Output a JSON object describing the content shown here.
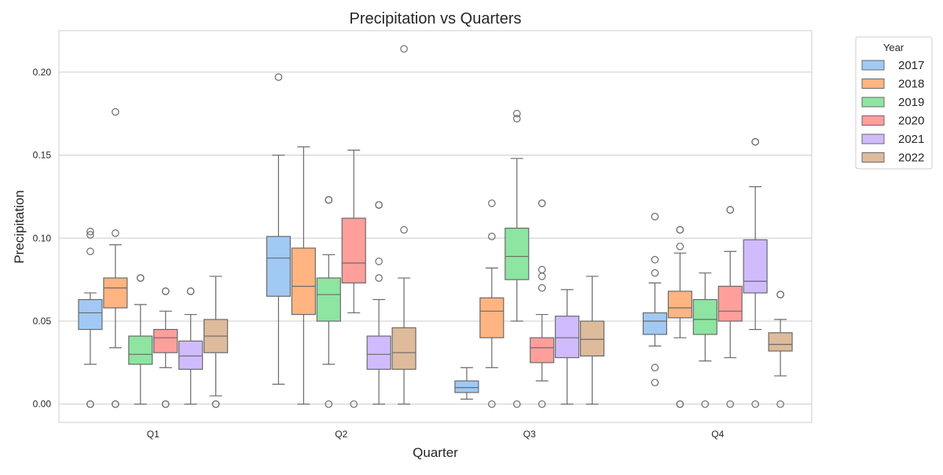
{
  "chart_data": {
    "type": "box",
    "title": "Precipitation vs Quarters",
    "xlabel": "Quarter",
    "ylabel": "Precipitation",
    "ylim": [
      -0.011,
      0.225
    ],
    "yticks": [
      "0.00",
      "0.05",
      "0.10",
      "0.15",
      "0.20"
    ],
    "ytick_values": [
      0.0,
      0.05,
      0.1,
      0.15,
      0.2
    ],
    "grid": true,
    "categories": [
      "Q1",
      "Q2",
      "Q3",
      "Q4"
    ],
    "legend": {
      "title": "Year",
      "position": "outside-right"
    },
    "series": [
      {
        "name": "2017",
        "color": "#a1c9f4",
        "boxes": [
          {
            "whislo": 0.024,
            "q1": 0.045,
            "med": 0.055,
            "q3": 0.063,
            "whishi": 0.067,
            "fliers": [
              0.104,
              0.102,
              0.092,
              0.0,
              0.0
            ]
          },
          {
            "whislo": 0.012,
            "q1": 0.065,
            "med": 0.088,
            "q3": 0.101,
            "whishi": 0.15,
            "fliers": [
              0.197
            ]
          },
          {
            "whislo": 0.003,
            "q1": 0.007,
            "med": 0.01,
            "q3": 0.014,
            "whishi": 0.022,
            "fliers": []
          },
          {
            "whislo": 0.035,
            "q1": 0.042,
            "med": 0.05,
            "q3": 0.055,
            "whishi": 0.073,
            "fliers": [
              0.113,
              0.087,
              0.079,
              0.022,
              0.013
            ]
          }
        ]
      },
      {
        "name": "2018",
        "color": "#ffb482",
        "boxes": [
          {
            "whislo": 0.034,
            "q1": 0.058,
            "med": 0.07,
            "q3": 0.076,
            "whishi": 0.096,
            "fliers": [
              0.176,
              0.103,
              0.0,
              0.0
            ]
          },
          {
            "whislo": 0.0,
            "q1": 0.054,
            "med": 0.071,
            "q3": 0.094,
            "whishi": 0.155,
            "fliers": []
          },
          {
            "whislo": 0.022,
            "q1": 0.04,
            "med": 0.056,
            "q3": 0.064,
            "whishi": 0.082,
            "fliers": [
              0.121,
              0.101,
              0.0
            ]
          },
          {
            "whislo": 0.04,
            "q1": 0.052,
            "med": 0.058,
            "q3": 0.068,
            "whishi": 0.091,
            "fliers": [
              0.105,
              0.105,
              0.095,
              0.0,
              0.0
            ]
          }
        ]
      },
      {
        "name": "2019",
        "color": "#8de5a1",
        "boxes": [
          {
            "whislo": 0.0,
            "q1": 0.024,
            "med": 0.03,
            "q3": 0.041,
            "whishi": 0.06,
            "fliers": [
              0.076,
              0.076
            ]
          },
          {
            "whislo": 0.024,
            "q1": 0.05,
            "med": 0.066,
            "q3": 0.076,
            "whishi": 0.09,
            "fliers": [
              0.123,
              0.123,
              0.0
            ]
          },
          {
            "whislo": 0.05,
            "q1": 0.075,
            "med": 0.089,
            "q3": 0.106,
            "whishi": 0.148,
            "fliers": [
              0.175,
              0.172,
              0.0
            ]
          },
          {
            "whislo": 0.026,
            "q1": 0.042,
            "med": 0.051,
            "q3": 0.063,
            "whishi": 0.079,
            "fliers": [
              0.0
            ]
          }
        ]
      },
      {
        "name": "2020",
        "color": "#ff9f9b",
        "boxes": [
          {
            "whislo": 0.022,
            "q1": 0.031,
            "med": 0.04,
            "q3": 0.045,
            "whishi": 0.056,
            "fliers": [
              0.068,
              0.068,
              0.0,
              0.0
            ]
          },
          {
            "whislo": 0.055,
            "q1": 0.073,
            "med": 0.085,
            "q3": 0.112,
            "whishi": 0.153,
            "fliers": [
              0.0
            ]
          },
          {
            "whislo": 0.014,
            "q1": 0.025,
            "med": 0.034,
            "q3": 0.04,
            "whishi": 0.054,
            "fliers": [
              0.121,
              0.121,
              0.081,
              0.077,
              0.07,
              0.0
            ]
          },
          {
            "whislo": 0.028,
            "q1": 0.05,
            "med": 0.056,
            "q3": 0.071,
            "whishi": 0.092,
            "fliers": [
              0.117,
              0.117,
              0.0
            ]
          }
        ]
      },
      {
        "name": "2021",
        "color": "#d0bbff",
        "boxes": [
          {
            "whislo": 0.0,
            "q1": 0.021,
            "med": 0.029,
            "q3": 0.038,
            "whishi": 0.054,
            "fliers": [
              0.068,
              0.068
            ]
          },
          {
            "whislo": 0.0,
            "q1": 0.021,
            "med": 0.03,
            "q3": 0.041,
            "whishi": 0.063,
            "fliers": [
              0.12,
              0.12,
              0.086,
              0.076
            ]
          },
          {
            "whislo": 0.0,
            "q1": 0.028,
            "med": 0.04,
            "q3": 0.053,
            "whishi": 0.069,
            "fliers": []
          },
          {
            "whislo": 0.045,
            "q1": 0.067,
            "med": 0.074,
            "q3": 0.099,
            "whishi": 0.131,
            "fliers": [
              0.158,
              0.158,
              0.0
            ]
          }
        ]
      },
      {
        "name": "2022",
        "color": "#debb9b",
        "boxes": [
          {
            "whislo": 0.005,
            "q1": 0.031,
            "med": 0.041,
            "q3": 0.051,
            "whishi": 0.077,
            "fliers": [
              0.0,
              0.0
            ]
          },
          {
            "whislo": 0.0,
            "q1": 0.021,
            "med": 0.031,
            "q3": 0.046,
            "whishi": 0.076,
            "fliers": [
              0.214,
              0.105
            ]
          },
          {
            "whislo": 0.0,
            "q1": 0.029,
            "med": 0.039,
            "q3": 0.05,
            "whishi": 0.077,
            "fliers": []
          },
          {
            "whislo": 0.017,
            "q1": 0.032,
            "med": 0.036,
            "q3": 0.043,
            "whishi": 0.051,
            "fliers": [
              0.066,
              0.066,
              0.0
            ]
          }
        ]
      }
    ]
  }
}
